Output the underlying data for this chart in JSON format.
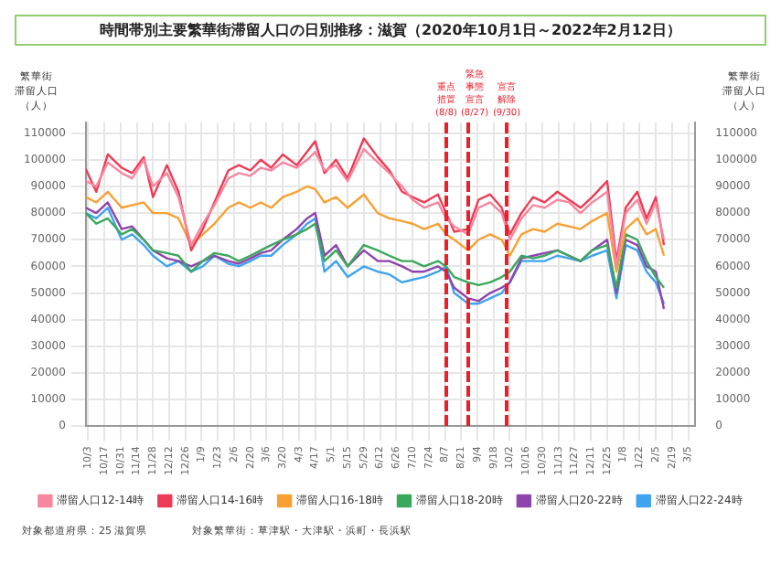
{
  "chart_data": {
    "type": "line",
    "title": "時間帯別主要繁華街滞留人口の日別推移：滋賀（2020年10月1日～2022年2月12日）",
    "ylabel": "繁華街滞留人口（人）",
    "y2label": "繁華街滞留人口（人）",
    "x": [
      "2020-10-01",
      "2020-10-10",
      "2020-10-20",
      "2020-11-01",
      "2020-11-10",
      "2020-11-20",
      "2020-11-28",
      "2020-12-10",
      "2020-12-20",
      "2020-12-31",
      "2021-01-10",
      "2021-01-20",
      "2021-02-01",
      "2021-02-10",
      "2021-02-20",
      "2021-03-01",
      "2021-03-10",
      "2021-03-20",
      "2021-04-01",
      "2021-04-10",
      "2021-04-17",
      "2021-04-25",
      "2021-05-05",
      "2021-05-15",
      "2021-05-29",
      "2021-06-10",
      "2021-06-20",
      "2021-07-01",
      "2021-07-10",
      "2021-07-20",
      "2021-08-01",
      "2021-08-08",
      "2021-08-15",
      "2021-08-27",
      "2021-09-05",
      "2021-09-15",
      "2021-09-25",
      "2021-10-02",
      "2021-10-12",
      "2021-10-22",
      "2021-11-01",
      "2021-11-12",
      "2021-11-22",
      "2021-12-02",
      "2021-12-12",
      "2021-12-25",
      "2022-01-02",
      "2022-01-10",
      "2022-01-20",
      "2022-01-28",
      "2022-02-05",
      "2022-02-12"
    ],
    "series": [
      {
        "name": "滞留人口12-14時",
        "color": "#f7879f",
        "values": [
          92000,
          90000,
          99000,
          95000,
          93000,
          100000,
          90000,
          95000,
          86000,
          68000,
          76000,
          83000,
          93000,
          95000,
          94000,
          97000,
          96000,
          99000,
          97000,
          100000,
          103000,
          96000,
          98000,
          92000,
          104000,
          99000,
          95000,
          90000,
          85000,
          82000,
          84000,
          78000,
          75000,
          72000,
          82000,
          84000,
          80000,
          70000,
          78000,
          83000,
          82000,
          85000,
          84000,
          80000,
          84000,
          88000,
          60000,
          80000,
          85000,
          76000,
          84000,
          70000
        ]
      },
      {
        "name": "滞留人口14-16時",
        "color": "#ee3b55",
        "values": [
          96500,
          88000,
          102000,
          97000,
          95000,
          101000,
          86000,
          98000,
          88000,
          66000,
          74000,
          84000,
          96000,
          98000,
          96000,
          100000,
          97000,
          102000,
          98000,
          103000,
          107000,
          95000,
          100000,
          93000,
          108000,
          101000,
          96000,
          88000,
          86000,
          84000,
          87000,
          80000,
          73000,
          74000,
          85000,
          87000,
          82000,
          72000,
          80000,
          86000,
          84000,
          88000,
          85000,
          82000,
          86000,
          92000,
          62000,
          82000,
          88000,
          78000,
          86000,
          68000
        ]
      },
      {
        "name": "滞留人口16-18時",
        "color": "#f7a033",
        "values": [
          86000,
          84000,
          88000,
          82000,
          83000,
          84000,
          80000,
          80000,
          78000,
          68000,
          72000,
          76000,
          82000,
          84000,
          82000,
          84000,
          82000,
          86000,
          88000,
          90000,
          89000,
          84000,
          86000,
          82000,
          87000,
          80000,
          78000,
          77000,
          76000,
          74000,
          76000,
          72000,
          70000,
          66000,
          70000,
          72000,
          70000,
          64000,
          72000,
          74000,
          73000,
          76000,
          75000,
          74000,
          77000,
          80000,
          58000,
          74000,
          78000,
          72000,
          74000,
          64000
        ]
      },
      {
        "name": "滞留人口18-20時",
        "color": "#3aa85c",
        "values": [
          80000,
          76000,
          78000,
          72000,
          74000,
          70000,
          66000,
          65000,
          64000,
          58000,
          62000,
          65000,
          64000,
          62000,
          64000,
          66000,
          68000,
          70000,
          72000,
          74000,
          76000,
          62000,
          66000,
          60000,
          68000,
          66000,
          64000,
          62000,
          62000,
          60000,
          62000,
          60000,
          56000,
          54000,
          53000,
          54000,
          56000,
          58000,
          64000,
          63000,
          64000,
          66000,
          64000,
          62000,
          66000,
          68000,
          52000,
          72000,
          70000,
          62000,
          56000,
          52000
        ]
      },
      {
        "name": "滞留人口20-22時",
        "color": "#8e44ad",
        "values": [
          82000,
          80000,
          84000,
          74000,
          75000,
          70000,
          66000,
          63000,
          62000,
          60000,
          62000,
          64000,
          62000,
          61000,
          63000,
          65000,
          66000,
          70000,
          74000,
          78000,
          80000,
          64000,
          68000,
          60000,
          66000,
          62000,
          62000,
          60000,
          58000,
          58000,
          60000,
          58000,
          52000,
          48000,
          47000,
          50000,
          52000,
          54000,
          63000,
          64000,
          65000,
          66000,
          64000,
          62000,
          66000,
          70000,
          50000,
          70000,
          68000,
          60000,
          58000,
          44000
        ]
      },
      {
        "name": "滞留人口22-24時",
        "color": "#3fa3f0",
        "values": [
          80000,
          78000,
          82000,
          70000,
          72000,
          68000,
          64000,
          60000,
          62000,
          58000,
          60000,
          64000,
          61000,
          60000,
          62000,
          64000,
          64000,
          68000,
          72000,
          76000,
          78000,
          58000,
          62000,
          56000,
          60000,
          58000,
          57000,
          54000,
          55000,
          56000,
          58000,
          60000,
          50000,
          46000,
          46000,
          48000,
          50000,
          54000,
          62000,
          62000,
          62000,
          64000,
          63000,
          62000,
          64000,
          66000,
          48000,
          68000,
          66000,
          58000,
          54000,
          46000
        ]
      }
    ],
    "xlim": [
      "2020-10-01",
      "2022-03-11"
    ],
    "xticks": [
      {
        "value": "2020-10-03",
        "label": "10/3"
      },
      {
        "value": "2020-10-17",
        "label": "10/17"
      },
      {
        "value": "2020-10-31",
        "label": "10/31"
      },
      {
        "value": "2020-11-14",
        "label": "11/14"
      },
      {
        "value": "2020-11-28",
        "label": "11/28"
      },
      {
        "value": "2020-12-12",
        "label": "12/12"
      },
      {
        "value": "2020-12-26",
        "label": "12/26"
      },
      {
        "value": "2021-01-09",
        "label": "1/9"
      },
      {
        "value": "2021-01-23",
        "label": "1/23"
      },
      {
        "value": "2021-02-06",
        "label": "2/6"
      },
      {
        "value": "2021-02-20",
        "label": "2/20"
      },
      {
        "value": "2021-03-06",
        "label": "3/6"
      },
      {
        "value": "2021-03-20",
        "label": "3/20"
      },
      {
        "value": "2021-04-03",
        "label": "4/3"
      },
      {
        "value": "2021-04-17",
        "label": "4/17"
      },
      {
        "value": "2021-05-01",
        "label": "5/1"
      },
      {
        "value": "2021-05-15",
        "label": "5/15"
      },
      {
        "value": "2021-05-29",
        "label": "5/29"
      },
      {
        "value": "2021-06-12",
        "label": "6/12"
      },
      {
        "value": "2021-06-26",
        "label": "6/26"
      },
      {
        "value": "2021-07-10",
        "label": "7/10"
      },
      {
        "value": "2021-07-24",
        "label": "7/24"
      },
      {
        "value": "2021-08-07",
        "label": "8/7"
      },
      {
        "value": "2021-08-21",
        "label": "8/21"
      },
      {
        "value": "2021-09-04",
        "label": "9/4"
      },
      {
        "value": "2021-09-18",
        "label": "9/18"
      },
      {
        "value": "2021-10-02",
        "label": "10/2"
      },
      {
        "value": "2021-10-16",
        "label": "10/16"
      },
      {
        "value": "2021-10-30",
        "label": "10/30"
      },
      {
        "value": "2021-11-13",
        "label": "11/13"
      },
      {
        "value": "2021-11-27",
        "label": "11/27"
      },
      {
        "value": "2021-12-11",
        "label": "12/11"
      },
      {
        "value": "2021-12-25",
        "label": "12/25"
      },
      {
        "value": "2022-01-08",
        "label": "1/8"
      },
      {
        "value": "2022-01-22",
        "label": "1/22"
      },
      {
        "value": "2022-02-05",
        "label": "2/5"
      },
      {
        "value": "2022-02-19",
        "label": "2/19"
      },
      {
        "value": "2022-03-05",
        "label": "3/5"
      }
    ],
    "ylim": [
      0,
      114000
    ],
    "yticks": [
      0,
      10000,
      20000,
      30000,
      40000,
      50000,
      60000,
      70000,
      80000,
      90000,
      100000,
      110000
    ],
    "y2lim": [
      0,
      114000
    ],
    "y2ticks": [
      0,
      10000,
      20000,
      30000,
      40000,
      50000,
      60000,
      70000,
      80000,
      90000,
      100000,
      110000
    ],
    "ref_lines": [
      {
        "axis": "x",
        "value": "2021-08-08",
        "label": "重点措置(8/8)",
        "color": "#e8202a",
        "line_style": "dashed"
      },
      {
        "axis": "x",
        "value": "2021-08-27",
        "label": "緊急事態宣言(8/27)",
        "color": "#e8202a",
        "line_style": "dashed"
      },
      {
        "axis": "x",
        "value": "2021-09-30",
        "label": "宣言解除(9/30)",
        "color": "#e8202a",
        "line_style": "dashed"
      }
    ],
    "annotations": [
      "対象都道府県：25 滋賀県",
      "対象繁華街：草津駅・大津駅・浜町・長浜駅"
    ],
    "grid": true,
    "legend": "bottom",
    "marker": "none",
    "line_style": "solid"
  }
}
